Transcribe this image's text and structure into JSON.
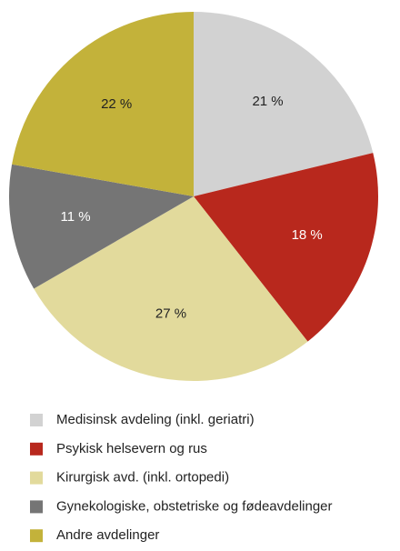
{
  "chart_data": {
    "type": "pie",
    "categories": [
      "Medisinsk avdeling (inkl. geriatri)",
      "Psykisk helsevern og rus",
      "Kirurgisk avd. (inkl. ortopedi)",
      "Gynekologiske, obstetriske og fødeavdelinger",
      "Andre avdelinger"
    ],
    "values": [
      21,
      18,
      27,
      11,
      22
    ],
    "value_labels": [
      "21 %",
      "18 %",
      "27 %",
      "11 %",
      "22 %"
    ],
    "colors": [
      "#d2d2d2",
      "#b8281d",
      "#e2da9c",
      "#757575",
      "#c3b23a"
    ],
    "legend": "bottom"
  }
}
